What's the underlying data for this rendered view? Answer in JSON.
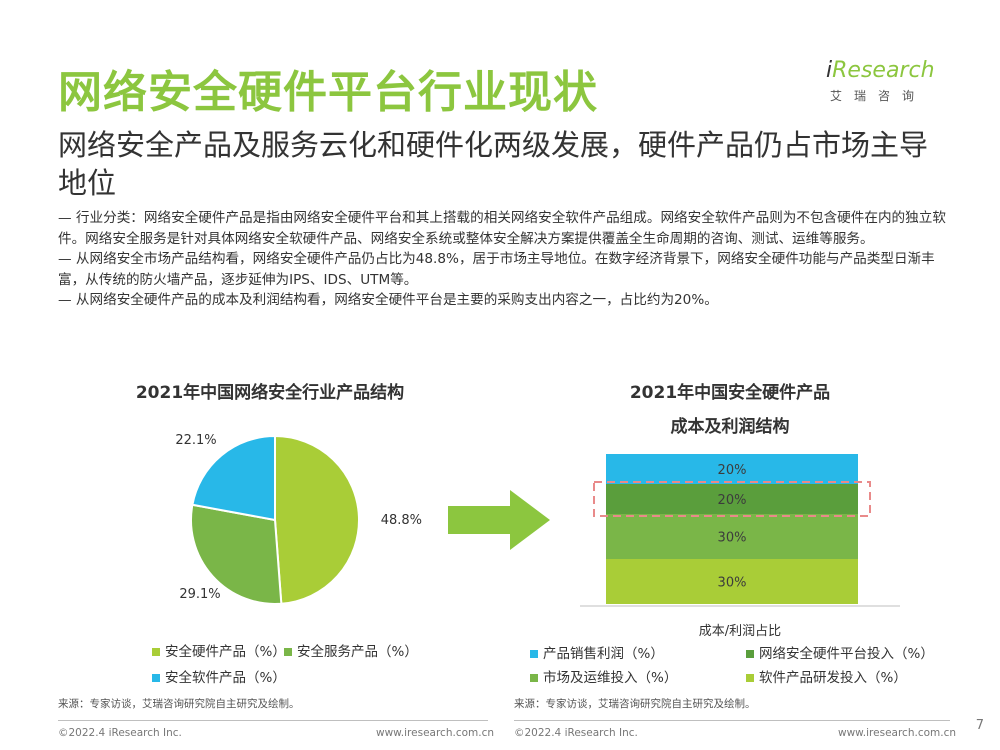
{
  "header": {
    "title": "网络安全硬件平台行业现状",
    "logo_brand": "Research",
    "logo_brand_i": "i",
    "logo_sub": "艾瑞咨询"
  },
  "subtitle": "网络安全产品及服务云化和硬件化两级发展，硬件产品仍占市场主导地位",
  "bullets": [
    "— 行业分类：网络安全硬件产品是指由网络安全硬件平台和其上搭载的相关网络安全软件产品组成。网络安全软件产品则为不包含硬件在内的独立软件。网络安全服务是针对具体网络安全软硬件产品、网络安全系统或整体安全解决方案提供覆盖全生命周期的咨询、测试、运维等服务。",
    "— 从网络安全市场产品结构看，网络安全硬件产品仍占比为48.8%，居于市场主导地位。在数字经济背景下，网络安全硬件功能与产品类型日渐丰富，从传统的防火墙产品，逐步延伸为IPS、IDS、UTM等。",
    "— 从网络安全硬件产品的成本及利润结构看，网络安全硬件平台是主要的采购支出内容之一，占比约为20%。"
  ],
  "chart_data": [
    {
      "type": "pie",
      "title": "2021年中国网络安全行业产品结构",
      "series": [
        {
          "name": "安全硬件产品（%）",
          "value": 48.8,
          "label": "48.8%",
          "color": "#a9cd37"
        },
        {
          "name": "安全服务产品（%）",
          "value": 29.1,
          "label": "29.1%",
          "color": "#7ab648"
        },
        {
          "name": "安全软件产品（%）",
          "value": 22.1,
          "label": "22.1%",
          "color": "#28b8e8"
        }
      ]
    },
    {
      "type": "bar",
      "stacked": true,
      "title": "2021年中国安全硬件产品",
      "title_line2": "成本及利润结构",
      "xlabel": "成本/利润占比",
      "series": [
        {
          "name": "软件产品研发投入（%）",
          "value": 30,
          "label": "30%",
          "color": "#a9cd37"
        },
        {
          "name": "市场及运维投入（%）",
          "value": 30,
          "label": "30%",
          "color": "#7ab648"
        },
        {
          "name": "网络安全硬件平台投入（%）",
          "value": 20,
          "label": "20%",
          "color": "#5a9e3c",
          "highlighted": true
        },
        {
          "name": "产品销售利润（%）",
          "value": 20,
          "label": "20%",
          "color": "#28b8e8"
        }
      ],
      "legend_order": [
        "产品销售利润（%）",
        "网络安全硬件平台投入（%）",
        "市场及运维投入（%）",
        "软件产品研发投入（%）"
      ]
    }
  ],
  "source_left": "来源：专家访谈，艾瑞咨询研究院自主研究及绘制。",
  "source_right": "来源：专家访谈，艾瑞咨询研究院自主研究及绘制。",
  "footer": {
    "copyright_left": "©2022.4 iResearch Inc.",
    "url_left": "www.iresearch.com.cn",
    "copyright_right": "©2022.4 iResearch Inc.",
    "url_right": "www.iresearch.com.cn",
    "page": "7"
  },
  "colors": {
    "accent": "#8cc63f",
    "arrow": "#8cc63f",
    "highlight_box": "#e98a8a"
  }
}
